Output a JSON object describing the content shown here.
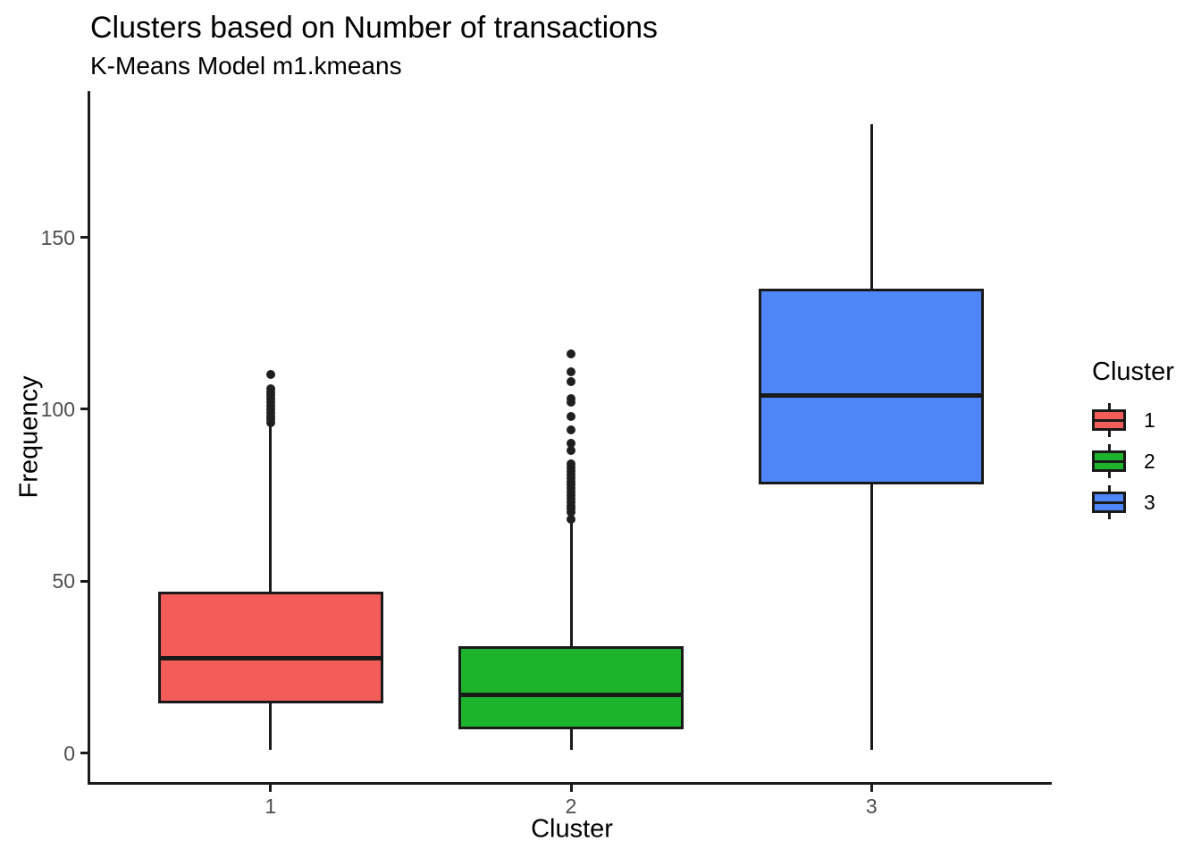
{
  "title": "Clusters based on Number of transactions",
  "subtitle": "K-Means Model m1.kmeans",
  "chart_data": {
    "type": "boxplot",
    "title": "Clusters based on Number of transactions",
    "subtitle": "K-Means Model m1.kmeans",
    "xlabel": "Cluster",
    "ylabel": "Frequency",
    "categories": [
      "1",
      "2",
      "3"
    ],
    "y_ticks": [
      0,
      50,
      100,
      150
    ],
    "ylim": [
      -8.3,
      192.5
    ],
    "grid": false,
    "legend": {
      "title": "Cluster",
      "position": "right",
      "items": [
        {
          "label": "1",
          "color": "#F25C59"
        },
        {
          "label": "2",
          "color": "#1DB32C"
        },
        {
          "label": "3",
          "color": "#4F86F8"
        }
      ]
    },
    "series": [
      {
        "name": "1",
        "color": "#F25C59",
        "whisker_low": 1,
        "q1": 14.5,
        "median": 27.5,
        "q3": 47,
        "whisker_high": 95,
        "outliers": [
          96,
          97,
          98,
          99,
          100,
          101,
          102,
          103,
          104,
          105,
          106,
          110
        ]
      },
      {
        "name": "2",
        "color": "#1DB32C",
        "whisker_low": 1,
        "q1": 7,
        "median": 17,
        "q3": 31,
        "whisker_high": 67,
        "outliers": [
          68,
          70,
          71,
          72,
          73,
          74,
          75,
          76,
          77,
          78,
          79,
          80,
          81,
          82,
          83,
          84,
          88,
          90,
          94,
          98,
          102,
          103,
          108,
          111,
          116
        ]
      },
      {
        "name": "3",
        "color": "#4F86F8",
        "whisker_low": 1,
        "q1": 78,
        "median": 104,
        "q3": 135,
        "whisker_high": 183,
        "outliers": []
      }
    ],
    "style": {
      "box_border": "#1A1A1A",
      "axis_color": "#1A1A1A",
      "tick_label_color": "#4D4D4D",
      "title_color": "#000000",
      "box_width_frac": 0.75,
      "x_padding": 0.6,
      "outlier_diameter": 10,
      "median_thickness": 5,
      "line_thickness": 3
    }
  }
}
